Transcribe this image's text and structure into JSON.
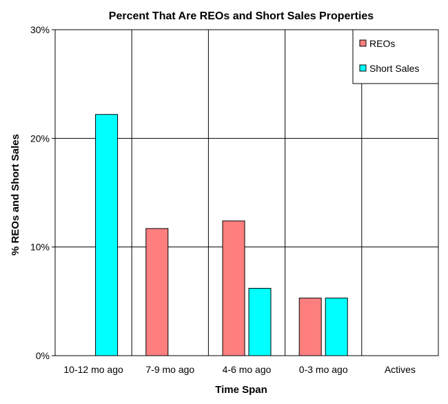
{
  "chart_data": {
    "type": "bar",
    "title": "Percent That Are REOs and Short Sales Properties",
    "xlabel": "Time Span",
    "ylabel": "% REOs and Short Sales",
    "categories": [
      "10-12 mo ago",
      "7-9 mo ago",
      "4-6 mo ago",
      "0-3 mo ago",
      "Actives"
    ],
    "series": [
      {
        "name": "REOs",
        "color": "#ff7f7f",
        "values": [
          0,
          11.7,
          12.4,
          5.3,
          0
        ]
      },
      {
        "name": "Short Sales",
        "color": "#00ffff",
        "values": [
          22.2,
          0,
          6.2,
          5.3,
          0
        ]
      }
    ],
    "ylim": [
      0,
      30
    ],
    "yticks": [
      0,
      10,
      20,
      30
    ],
    "ytick_labels": [
      "0%",
      "10%",
      "20%",
      "30%"
    ],
    "grid": true,
    "legend_position": "top-right"
  }
}
